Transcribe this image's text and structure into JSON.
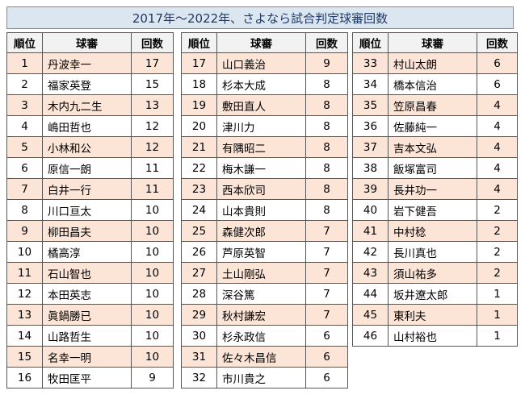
{
  "title": "2017年～2022年、さよなら試合判定球審回数",
  "headers": {
    "rank": "順位",
    "umpire": "球審",
    "count": "回数"
  },
  "columns": [
    [
      {
        "rank": "1",
        "name": "丹波幸一",
        "count": "17"
      },
      {
        "rank": "2",
        "name": "福家英登",
        "count": "15"
      },
      {
        "rank": "3",
        "name": "木内九二生",
        "count": "13"
      },
      {
        "rank": "4",
        "name": "嶋田哲也",
        "count": "12"
      },
      {
        "rank": "5",
        "name": "小林和公",
        "count": "12"
      },
      {
        "rank": "6",
        "name": "原信一朗",
        "count": "11"
      },
      {
        "rank": "7",
        "name": "白井一行",
        "count": "11"
      },
      {
        "rank": "8",
        "name": "川口亘太",
        "count": "10"
      },
      {
        "rank": "9",
        "name": "柳田昌夫",
        "count": "10"
      },
      {
        "rank": "10",
        "name": "橘高淳",
        "count": "10"
      },
      {
        "rank": "11",
        "name": "石山智也",
        "count": "10"
      },
      {
        "rank": "12",
        "name": "本田英志",
        "count": "10"
      },
      {
        "rank": "13",
        "name": "眞鍋勝已",
        "count": "10"
      },
      {
        "rank": "14",
        "name": "山路哲生",
        "count": "10"
      },
      {
        "rank": "15",
        "name": "名幸一明",
        "count": "10"
      },
      {
        "rank": "16",
        "name": "牧田匡平",
        "count": "9"
      }
    ],
    [
      {
        "rank": "17",
        "name": "山口義治",
        "count": "9"
      },
      {
        "rank": "18",
        "name": "杉本大成",
        "count": "8"
      },
      {
        "rank": "19",
        "name": "敷田直人",
        "count": "8"
      },
      {
        "rank": "20",
        "name": "津川力",
        "count": "8"
      },
      {
        "rank": "21",
        "name": "有隅昭二",
        "count": "8"
      },
      {
        "rank": "22",
        "name": "梅木謙一",
        "count": "8"
      },
      {
        "rank": "23",
        "name": "西本欣司",
        "count": "8"
      },
      {
        "rank": "24",
        "name": "山本貴則",
        "count": "8"
      },
      {
        "rank": "25",
        "name": "森健次郎",
        "count": "7"
      },
      {
        "rank": "26",
        "name": "芦原英智",
        "count": "7"
      },
      {
        "rank": "27",
        "name": "土山剛弘",
        "count": "7"
      },
      {
        "rank": "28",
        "name": "深谷篤",
        "count": "7"
      },
      {
        "rank": "29",
        "name": "秋村謙宏",
        "count": "7"
      },
      {
        "rank": "30",
        "name": "杉永政信",
        "count": "6"
      },
      {
        "rank": "31",
        "name": "佐々木昌信",
        "count": "6"
      },
      {
        "rank": "32",
        "name": "市川貴之",
        "count": "6"
      }
    ],
    [
      {
        "rank": "33",
        "name": "村山太朗",
        "count": "6"
      },
      {
        "rank": "34",
        "name": "橋本信治",
        "count": "6"
      },
      {
        "rank": "35",
        "name": "笠原昌春",
        "count": "4"
      },
      {
        "rank": "36",
        "name": "佐藤純一",
        "count": "4"
      },
      {
        "rank": "37",
        "name": "吉本文弘",
        "count": "4"
      },
      {
        "rank": "38",
        "name": "飯塚富司",
        "count": "4"
      },
      {
        "rank": "39",
        "name": "長井功一",
        "count": "4"
      },
      {
        "rank": "40",
        "name": "岩下健吾",
        "count": "2"
      },
      {
        "rank": "41",
        "name": "中村稔",
        "count": "2"
      },
      {
        "rank": "42",
        "name": "長川真也",
        "count": "2"
      },
      {
        "rank": "43",
        "name": "須山祐多",
        "count": "2"
      },
      {
        "rank": "44",
        "name": "坂井遼太郎",
        "count": "1"
      },
      {
        "rank": "45",
        "name": "東利夫",
        "count": "1"
      },
      {
        "rank": "46",
        "name": "山村裕也",
        "count": "1"
      }
    ]
  ],
  "colors": {
    "title_bg": "#dce6f1",
    "title_text": "#1f3864",
    "odd_row_bg": "#fce4d6",
    "header_bg": "#f2f2f2"
  }
}
